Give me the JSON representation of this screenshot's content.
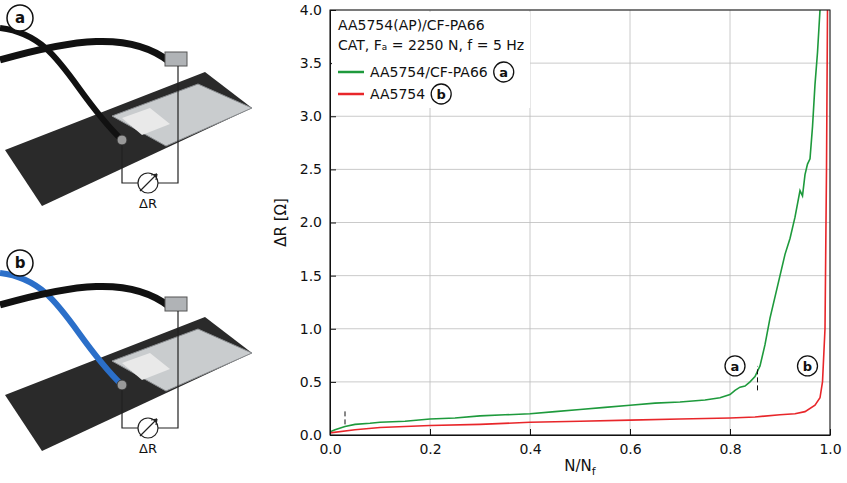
{
  "chart_data": {
    "type": "line",
    "title": "AA5754(AP)/CF-PA66",
    "subtitle": "CAT, Fₐ = 2250 N, f = 5 Hz",
    "xlabel": {
      "text": "N/N",
      "subscript": "f"
    },
    "ylabel": "ΔR [Ω]",
    "xlim": [
      0,
      1
    ],
    "ylim": [
      0,
      4
    ],
    "xticks": [
      {
        "value": 0,
        "label": "0.0"
      },
      0.2,
      0.4,
      0.6,
      0.8,
      {
        "value": 1,
        "label": "1.0"
      }
    ],
    "yticks": [
      {
        "value": 0,
        "label": "0.0"
      },
      0.5,
      {
        "value": 1,
        "label": "1.0"
      },
      1.5,
      {
        "value": 2,
        "label": "2.0"
      },
      2.5,
      {
        "value": 3,
        "label": "3.0"
      },
      3.5,
      {
        "value": 4,
        "label": "4.0"
      }
    ],
    "grid": true,
    "legend": "upper left",
    "series": [
      {
        "name": "AA5754/CF-PA66",
        "badge": "a",
        "color": "#1e9a3c",
        "x": [
          0,
          0.01,
          0.03,
          0.05,
          0.08,
          0.1,
          0.15,
          0.2,
          0.25,
          0.3,
          0.35,
          0.4,
          0.45,
          0.5,
          0.55,
          0.6,
          0.65,
          0.7,
          0.75,
          0.78,
          0.8,
          0.81,
          0.82,
          0.83,
          0.84,
          0.85,
          0.86,
          0.87,
          0.88,
          0.89,
          0.9,
          0.91,
          0.92,
          0.93,
          0.94,
          0.945,
          0.95,
          0.955,
          0.96,
          0.965,
          0.97,
          0.975,
          0.98
        ],
        "values": [
          0.03,
          0.05,
          0.08,
          0.1,
          0.11,
          0.12,
          0.13,
          0.15,
          0.16,
          0.18,
          0.19,
          0.2,
          0.22,
          0.24,
          0.26,
          0.28,
          0.3,
          0.31,
          0.33,
          0.35,
          0.38,
          0.42,
          0.45,
          0.46,
          0.5,
          0.55,
          0.65,
          0.85,
          1.1,
          1.3,
          1.5,
          1.7,
          1.85,
          2.05,
          2.3,
          2.25,
          2.45,
          2.55,
          2.6,
          2.9,
          3.3,
          3.6,
          4.0
        ]
      },
      {
        "name": "AA5754",
        "badge": "b",
        "color": "#e8262a",
        "x": [
          0,
          0.05,
          0.1,
          0.2,
          0.3,
          0.4,
          0.5,
          0.6,
          0.7,
          0.8,
          0.85,
          0.9,
          0.93,
          0.95,
          0.97,
          0.98,
          0.985,
          0.99,
          0.993,
          0.995
        ],
        "values": [
          0.02,
          0.05,
          0.07,
          0.09,
          0.1,
          0.12,
          0.13,
          0.14,
          0.15,
          0.16,
          0.17,
          0.19,
          0.2,
          0.22,
          0.28,
          0.35,
          0.5,
          1.0,
          2.5,
          4.0
        ]
      }
    ],
    "annotations": [
      {
        "text": "a",
        "x": 0.81,
        "y": 0.65
      },
      {
        "text": "b",
        "x": 0.955,
        "y": 0.65
      }
    ],
    "event_marks": [
      {
        "x": 0.03,
        "y": [
          0.1,
          0.25
        ]
      },
      {
        "x": 0.855,
        "y": [
          0.42,
          0.65
        ]
      }
    ]
  },
  "photos": [
    {
      "label": "a",
      "meter_label": "ΔR"
    },
    {
      "label": "b",
      "meter_label": "ΔR"
    }
  ]
}
